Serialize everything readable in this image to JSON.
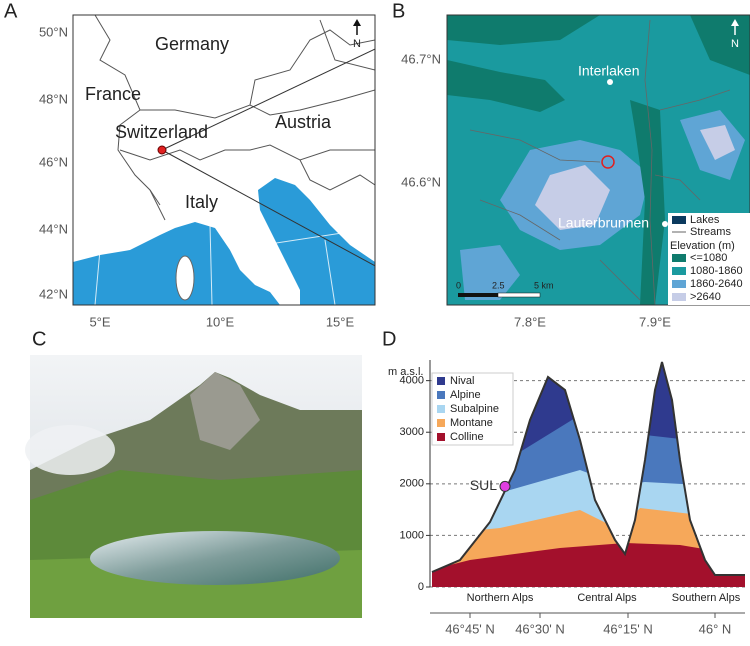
{
  "panel_labels": [
    "A",
    "B",
    "C",
    "D"
  ],
  "map_a": {
    "countries": [
      "Germany",
      "France",
      "Switzerland",
      "Austria",
      "Italy"
    ],
    "lat_labels": [
      "50°N",
      "48°N",
      "46°N",
      "44°N",
      "42°N"
    ],
    "lon_labels": [
      "5°E",
      "10°E",
      "15°E"
    ],
    "north": "N"
  },
  "map_b": {
    "places": [
      "Interlaken",
      "Lauterbrunnen"
    ],
    "lat_labels": [
      "46.7°N",
      "46.6°N"
    ],
    "lon_labels": [
      "7.8°E",
      "7.9°E"
    ],
    "scale_labels": [
      "0",
      "2.5",
      "5 km"
    ],
    "north": "N",
    "legend": {
      "lakes": {
        "label": "Lakes",
        "color": "#0b3a5e"
      },
      "streams": "Streams",
      "title": "Elevation (m)",
      "classes": [
        {
          "label": "<=1080",
          "color": "#0f7b6d"
        },
        {
          "label": "1080-1860",
          "color": "#1a9a9f"
        },
        {
          "label": "1860-2640",
          "color": "#5fa5d5"
        },
        {
          "label": ">2640",
          "color": "#c6cde7"
        }
      ]
    }
  },
  "chart_data": {
    "type": "profile",
    "ylabel": "m a.s.l.",
    "ylim": [
      0,
      4400
    ],
    "yticks": [
      0,
      1000,
      2000,
      3000,
      4000
    ],
    "grid": true,
    "series": [
      {
        "name": "Nival",
        "color": "#2f3a8e"
      },
      {
        "name": "Alpine",
        "color": "#4a78bd"
      },
      {
        "name": "Subalpine",
        "color": "#a9d6f1"
      },
      {
        "name": "Montane",
        "color": "#f6a85a"
      },
      {
        "name": "Colline",
        "color": "#a3102c"
      }
    ],
    "point": {
      "label": "SUL",
      "value": 1950,
      "color": "#e03fe0"
    },
    "regions": [
      "Northern Alps",
      "Central Alps",
      "Southern Alps"
    ],
    "xtick_labels": [
      "46°45' N",
      "46°30' N",
      "46°15' N",
      "46° N"
    ]
  }
}
